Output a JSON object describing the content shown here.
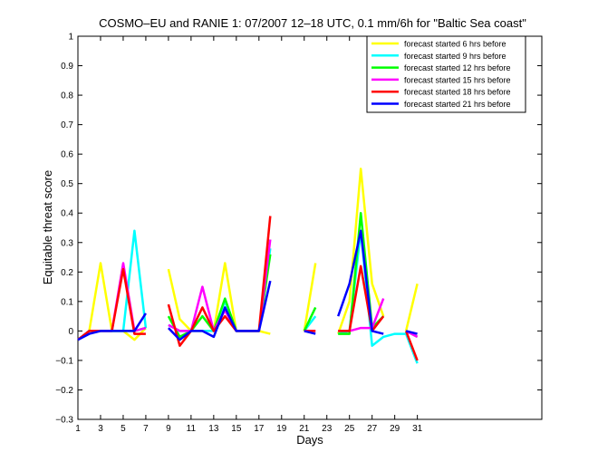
{
  "chart_data": {
    "type": "line",
    "title": "COSMO–EU and RANIE 1: 07/2007 12–18 UTC, 0.1 mm/6h for \"Baltic Sea coast\"",
    "xlabel": "Days",
    "ylabel": "Equitable threat score",
    "xlim": [
      1,
      42
    ],
    "ylim": [
      -0.3,
      1
    ],
    "xticks": [
      1,
      3,
      5,
      7,
      9,
      11,
      13,
      15,
      17,
      19,
      21,
      23,
      25,
      27,
      29,
      31
    ],
    "yticks": [
      -0.3,
      -0.2,
      -0.1,
      0,
      0.1,
      0.2,
      0.3,
      0.4,
      0.5,
      0.6,
      0.7,
      0.8,
      0.9,
      1
    ],
    "ytick_labels": [
      "−0.3",
      "−0.2",
      "−0.1",
      "0",
      "0.1",
      "0.2",
      "0.3",
      "0.4",
      "0.5",
      "0.6",
      "0.7",
      "0.8",
      "0.9",
      "1"
    ],
    "legend_position": "top-right",
    "grid": false,
    "x": [
      1,
      2,
      3,
      4,
      5,
      6,
      7,
      8,
      9,
      10,
      11,
      12,
      13,
      14,
      15,
      16,
      17,
      18,
      19,
      20,
      21,
      22,
      23,
      24,
      25,
      26,
      27,
      28,
      29,
      30,
      31
    ],
    "series": [
      {
        "name": "forecast started 6 hrs before",
        "color": "#ffff00",
        "values": [
          -0.03,
          0.0,
          0.23,
          0.0,
          0.0,
          -0.03,
          0.01,
          null,
          0.21,
          0.04,
          0.0,
          0.0,
          0.0,
          0.23,
          0.0,
          0.0,
          0.0,
          -0.01,
          null,
          null,
          0.0,
          0.23,
          null,
          -0.01,
          0.1,
          0.55,
          0.16,
          0.05,
          null,
          0.0,
          0.16
        ]
      },
      {
        "name": "forecast started 9 hrs before",
        "color": "#00ffff",
        "values": [
          -0.03,
          0.0,
          0.0,
          0.0,
          0.0,
          0.34,
          0.01,
          null,
          0.02,
          0.0,
          0.0,
          0.0,
          0.0,
          0.1,
          0.0,
          0.0,
          0.0,
          0.28,
          null,
          null,
          0.0,
          0.05,
          null,
          -0.01,
          0.0,
          0.34,
          -0.05,
          -0.02,
          -0.01,
          -0.01,
          -0.11
        ]
      },
      {
        "name": "forecast started 12 hrs before",
        "color": "#00ff00",
        "values": [
          -0.03,
          0.0,
          0.0,
          0.0,
          0.0,
          0.0,
          0.01,
          null,
          0.05,
          -0.02,
          0.0,
          0.05,
          0.0,
          0.11,
          0.0,
          0.0,
          0.0,
          0.26,
          null,
          null,
          0.0,
          0.08,
          null,
          -0.01,
          -0.01,
          0.4,
          0.01,
          0.05,
          null,
          0.0,
          -0.02
        ]
      },
      {
        "name": "forecast started 15 hrs before",
        "color": "#ff00ff",
        "values": [
          -0.03,
          0.0,
          0.0,
          0.0,
          0.23,
          0.0,
          0.01,
          null,
          0.02,
          0.0,
          0.0,
          0.15,
          0.0,
          0.07,
          0.0,
          0.0,
          0.0,
          0.31,
          null,
          null,
          0.0,
          0.0,
          null,
          0.0,
          0.0,
          0.01,
          0.01,
          0.11,
          null,
          0.0,
          -0.02
        ]
      },
      {
        "name": "forecast started 18 hrs before",
        "color": "#ff0000",
        "values": [
          -0.03,
          0.0,
          0.0,
          0.0,
          0.21,
          -0.01,
          -0.01,
          null,
          0.09,
          -0.05,
          0.0,
          0.08,
          0.0,
          0.05,
          0.0,
          0.0,
          0.0,
          0.39,
          null,
          null,
          0.0,
          0.0,
          null,
          0.0,
          0.0,
          0.22,
          0.0,
          0.05,
          null,
          0.0,
          -0.1
        ]
      },
      {
        "name": "forecast started 21 hrs before",
        "color": "#0000ff",
        "values": [
          -0.03,
          -0.01,
          0.0,
          0.0,
          0.0,
          0.0,
          0.06,
          null,
          0.01,
          -0.03,
          0.0,
          0.0,
          -0.02,
          0.08,
          0.0,
          0.0,
          0.0,
          0.17,
          null,
          null,
          0.0,
          -0.01,
          null,
          0.05,
          0.16,
          0.34,
          0.0,
          -0.01,
          null,
          0.0,
          -0.01
        ]
      }
    ]
  }
}
